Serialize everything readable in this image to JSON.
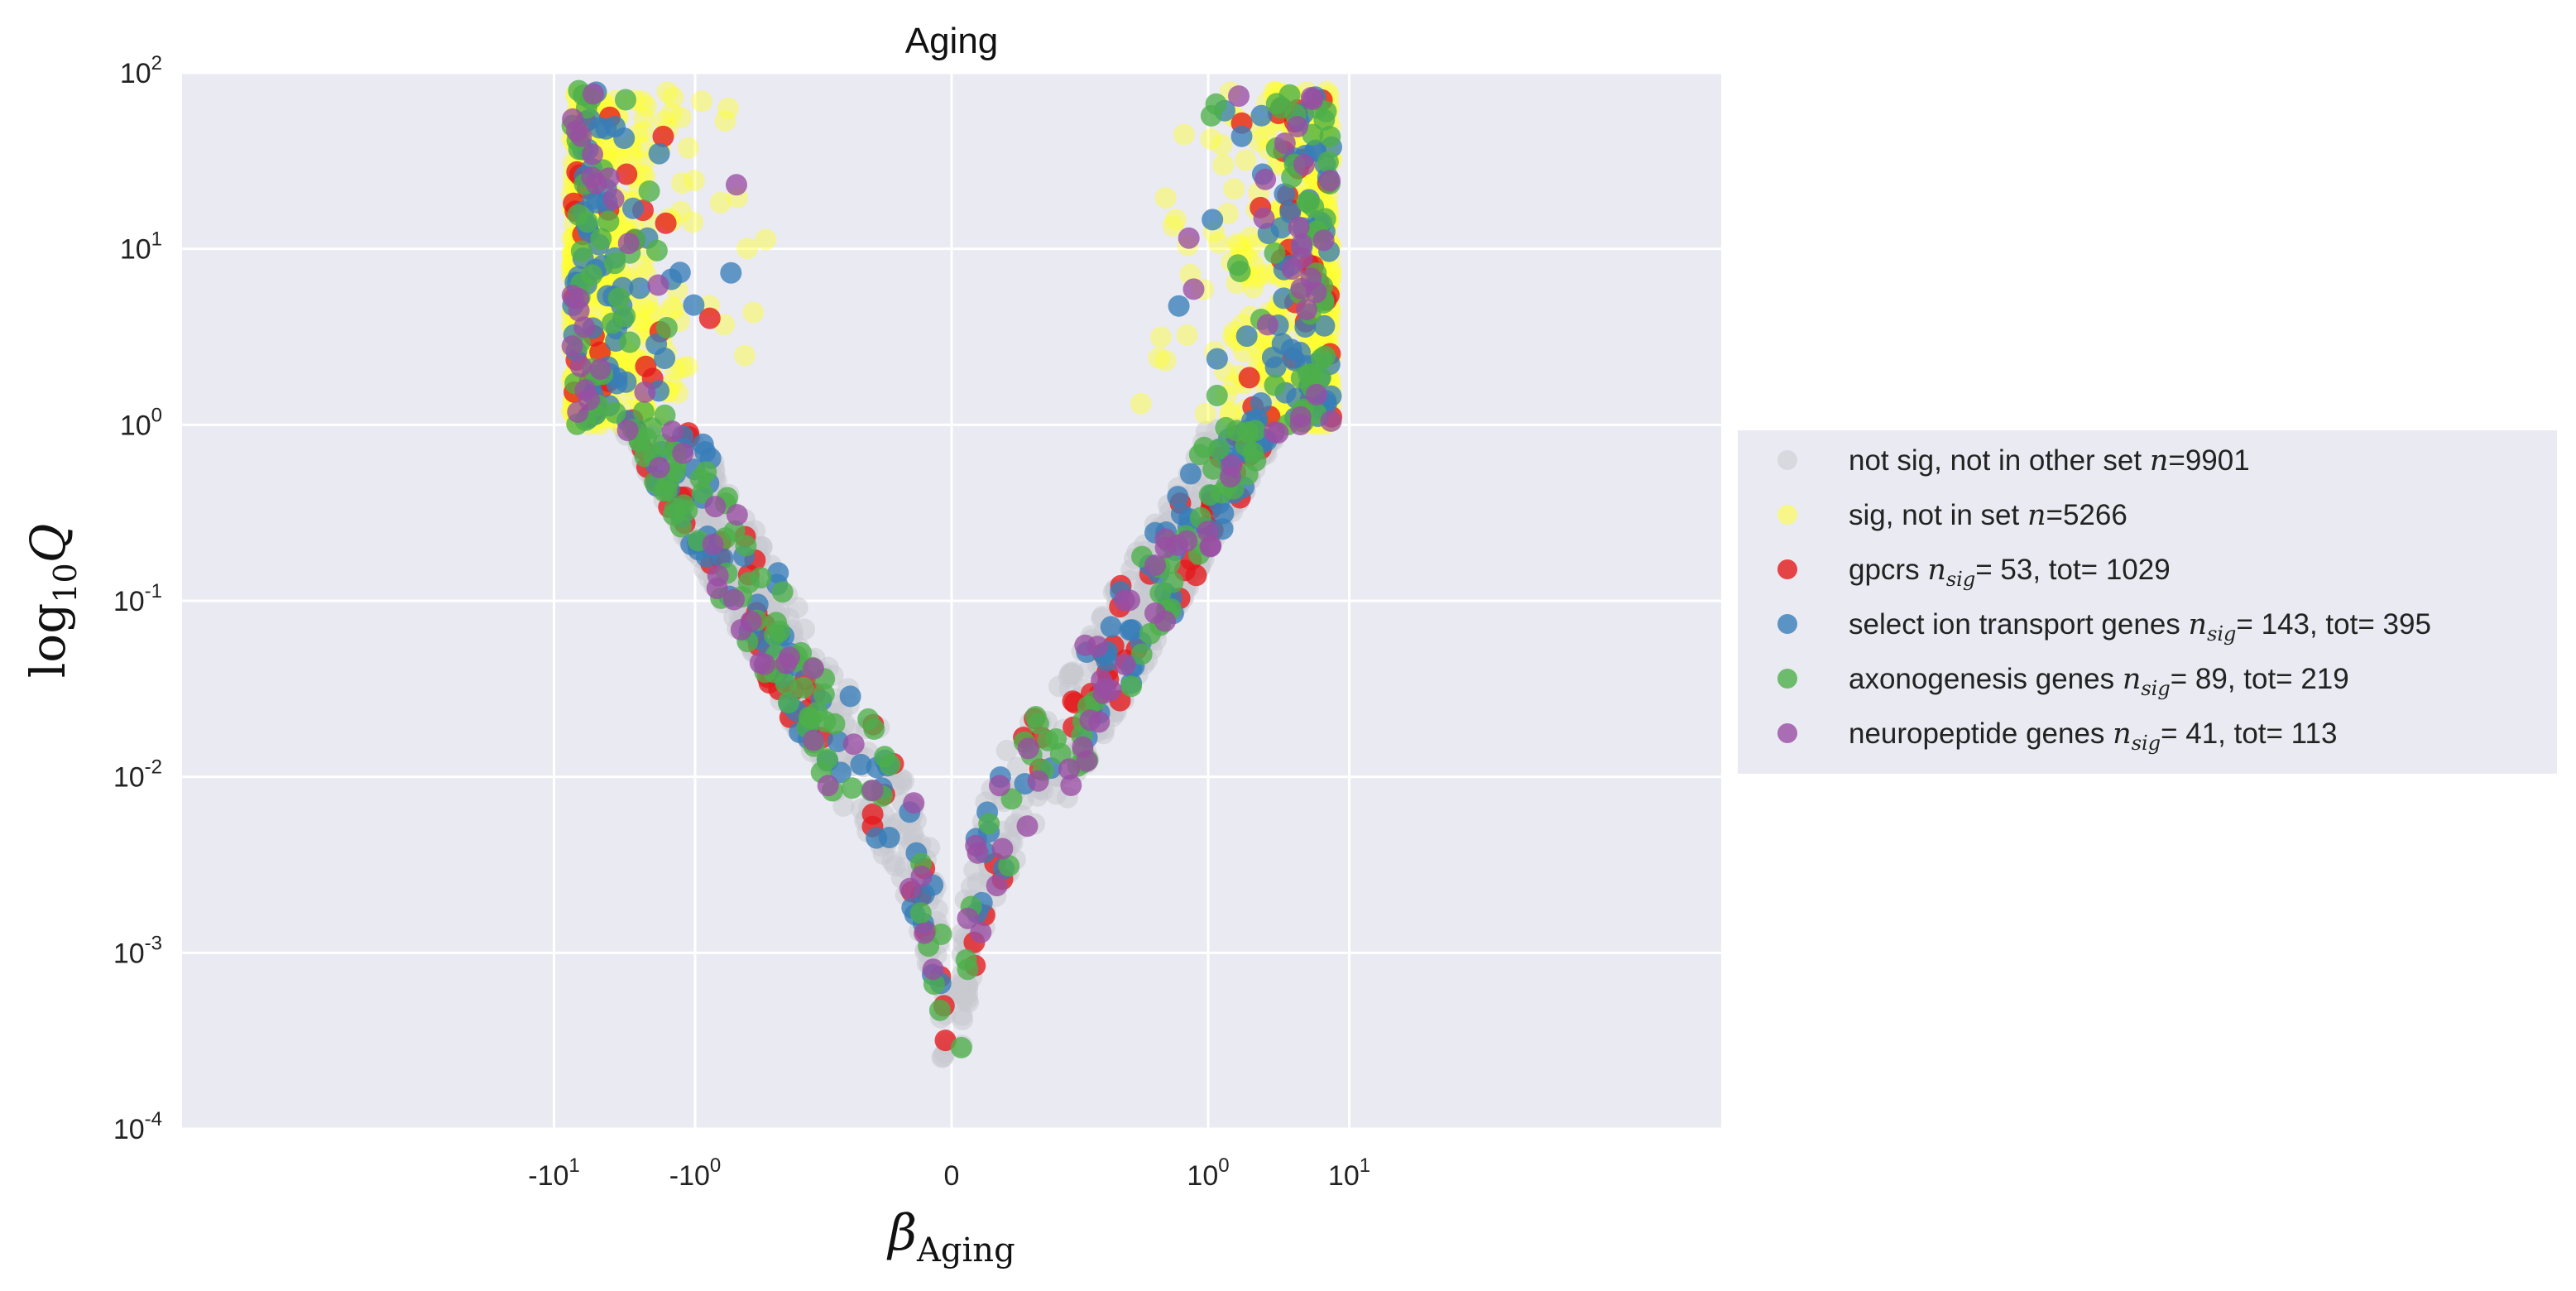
{
  "chart_data": {
    "type": "scatter",
    "title": "Aging",
    "xlabel": "β_Aging",
    "ylabel": "log10 Q",
    "x_scale": "symlog",
    "y_scale": "log",
    "xlim": [
      -12,
      12
    ],
    "ylim": [
      0.0001,
      100
    ],
    "x_ticks": [
      {
        "value": -10,
        "base": "-10",
        "exp": "1"
      },
      {
        "value": -1,
        "base": "-10",
        "exp": "0"
      },
      {
        "value": 0,
        "base": "0",
        "exp": ""
      },
      {
        "value": 1,
        "base": "10",
        "exp": "0"
      },
      {
        "value": 10,
        "base": "10",
        "exp": "1"
      }
    ],
    "y_ticks": [
      {
        "value": 100,
        "base": "10",
        "exp": "2"
      },
      {
        "value": 10,
        "base": "10",
        "exp": "1"
      },
      {
        "value": 1,
        "base": "10",
        "exp": "0"
      },
      {
        "value": 0.1,
        "base": "10",
        "exp": "-1"
      },
      {
        "value": 0.01,
        "base": "10",
        "exp": "-2"
      },
      {
        "value": 0.001,
        "base": "10",
        "exp": "-3"
      },
      {
        "value": 0.0001,
        "base": "10",
        "exp": "-4"
      }
    ],
    "grid": true,
    "legend_position": "right, outside plot",
    "series": [
      {
        "name": "not sig, not in other set n=9901",
        "legend": {
          "pre": "not sig, not in other set ",
          "n": "n",
          "post": "=9901"
        },
        "color": "#c8c8d0",
        "n": 9901,
        "sampled": 900
      },
      {
        "name": "sig, not in set n=5266",
        "legend": {
          "pre": "sig, not in set ",
          "n": "n",
          "post": "=5266"
        },
        "color": "#ffff33",
        "n": 5266,
        "sampled": 900
      },
      {
        "name": "gpcrs n_sig= 53, tot= 1029",
        "legend": {
          "pre": "gpcrs ",
          "n": "n",
          "sub": "sig",
          "post": "= 53, tot= 1029"
        },
        "color": "#e41a1c",
        "n": 1029,
        "sampled": 150
      },
      {
        "name": "select ion transport genes n_sig= 143, tot= 395",
        "legend": {
          "pre": "select ion transport genes ",
          "n": "n",
          "sub": "sig",
          "post": "= 143, tot= 395"
        },
        "color": "#377eb8",
        "n": 395,
        "sampled": 240
      },
      {
        "name": "axonogenesis genes n_sig= 89, tot= 219",
        "legend": {
          "pre": "axonogenesis genes ",
          "n": "n",
          "sub": "sig",
          "post": "= 89, tot= 219"
        },
        "color": "#4daf4a",
        "n": 219,
        "sampled": 219
      },
      {
        "name": "neuropeptide genes n_sig= 41, tot= 113",
        "legend": {
          "pre": "neuropeptide genes ",
          "n": "n",
          "sub": "sig",
          "post": "= 41, tot= 113"
        },
        "color": "#984ea3",
        "n": 113,
        "sampled": 113
      }
    ]
  }
}
